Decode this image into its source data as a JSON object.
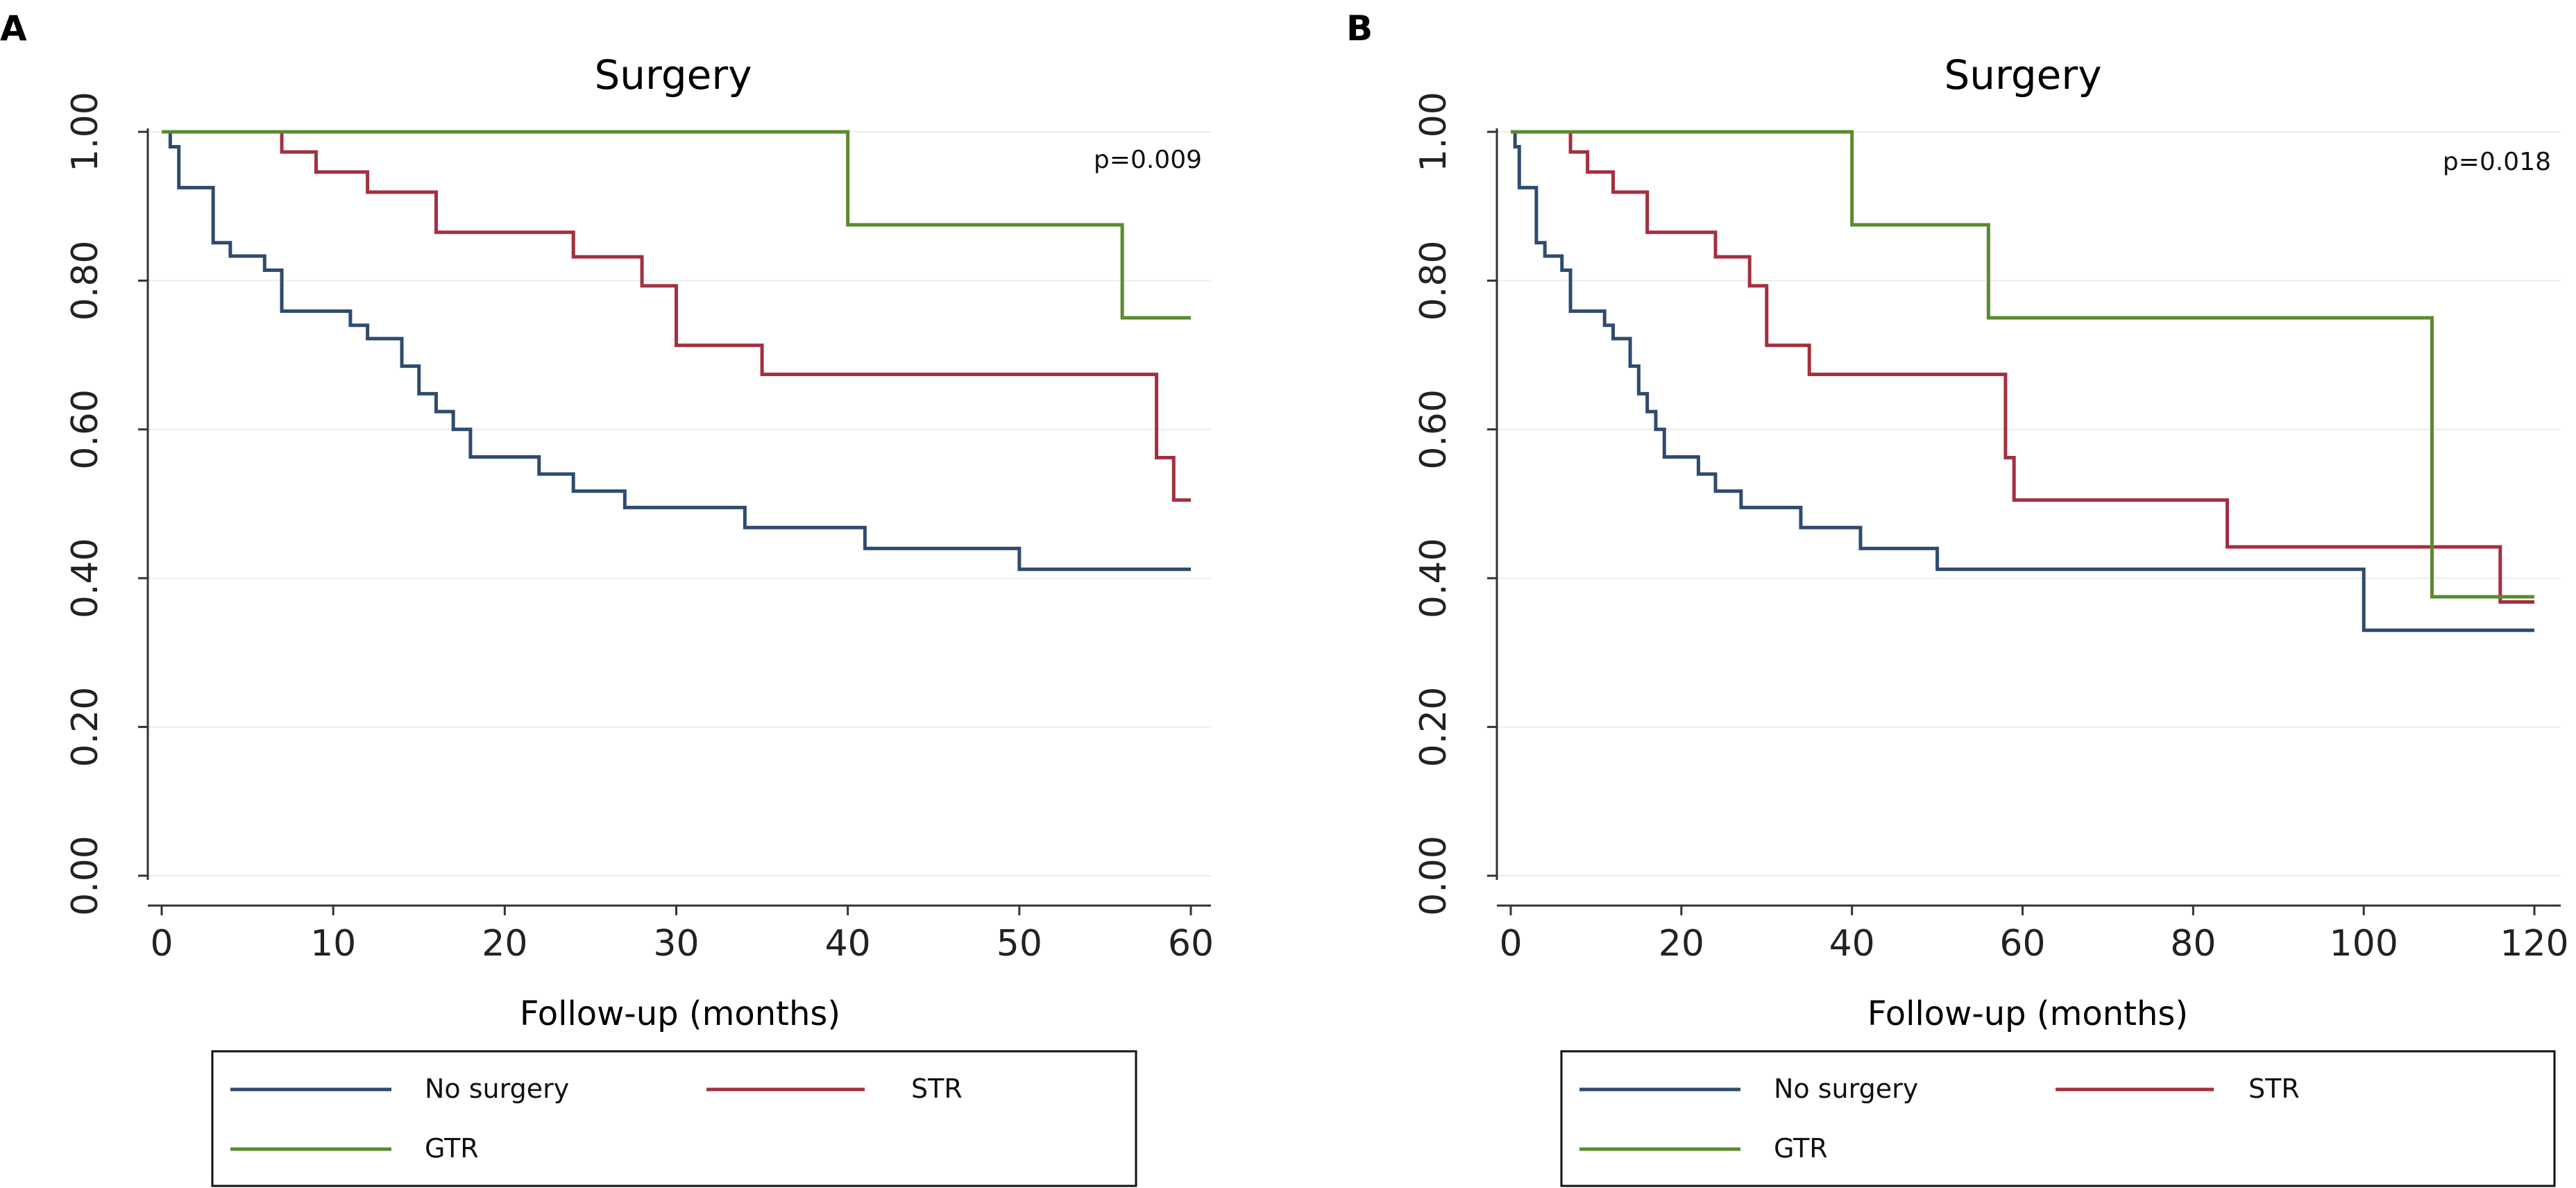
{
  "chart_data": [
    {
      "panel": "A",
      "type": "line",
      "title": "Surgery",
      "xlabel": "Follow-up (months)",
      "ylabel": "",
      "xlim": [
        0,
        60
      ],
      "ylim": [
        0,
        1
      ],
      "xticks": [
        0,
        10,
        20,
        30,
        40,
        50,
        60
      ],
      "yticks": [
        0,
        0.2,
        0.4,
        0.6,
        0.8,
        1.0
      ],
      "ytick_labels": [
        "0.00",
        "0.20",
        "0.40",
        "0.60",
        "0.80",
        "1.00"
      ],
      "annotation": "p=0.009",
      "grid": true,
      "series": [
        {
          "name": "No surgery",
          "color": "#2f4b6e",
          "x": [
            0,
            0.5,
            1,
            3,
            4,
            6,
            7,
            11,
            12,
            14,
            15,
            16,
            17,
            18,
            22,
            24,
            27,
            34,
            41,
            50,
            60
          ],
          "y": [
            1.0,
            0.98,
            0.925,
            0.851,
            0.833,
            0.814,
            0.759,
            0.74,
            0.722,
            0.685,
            0.648,
            0.624,
            0.6,
            0.563,
            0.54,
            0.517,
            0.495,
            0.468,
            0.44,
            0.412,
            0.412
          ]
        },
        {
          "name": "STR",
          "color": "#a3303f",
          "x": [
            0,
            7,
            9,
            12,
            16,
            24,
            28,
            30,
            35,
            58,
            59,
            60
          ],
          "y": [
            1.0,
            0.973,
            0.946,
            0.919,
            0.865,
            0.832,
            0.793,
            0.713,
            0.674,
            0.562,
            0.505,
            0.505
          ]
        },
        {
          "name": "GTR",
          "color": "#5a8a2e",
          "x": [
            0,
            40,
            56,
            60
          ],
          "y": [
            1.0,
            0.875,
            0.75,
            0.75
          ]
        }
      ],
      "legend": [
        "No surgery",
        "STR",
        "GTR"
      ]
    },
    {
      "panel": "B",
      "type": "line",
      "title": "Surgery",
      "xlabel": "Follow-up (months)",
      "ylabel": "",
      "xlim": [
        0,
        120
      ],
      "ylim": [
        0,
        1
      ],
      "xticks": [
        0,
        20,
        40,
        60,
        80,
        100,
        120
      ],
      "yticks": [
        0,
        0.2,
        0.4,
        0.6,
        0.8,
        1.0
      ],
      "ytick_labels": [
        "0.00",
        "0.20",
        "0.40",
        "0.60",
        "0.80",
        "1.00"
      ],
      "annotation": "p=0.018",
      "grid": true,
      "series": [
        {
          "name": "No surgery",
          "color": "#2f4b6e",
          "x": [
            0,
            0.5,
            1,
            3,
            4,
            6,
            7,
            11,
            12,
            14,
            15,
            16,
            17,
            18,
            22,
            24,
            27,
            34,
            41,
            50,
            100,
            120
          ],
          "y": [
            1.0,
            0.98,
            0.925,
            0.851,
            0.833,
            0.814,
            0.759,
            0.74,
            0.722,
            0.685,
            0.648,
            0.624,
            0.6,
            0.563,
            0.54,
            0.517,
            0.495,
            0.468,
            0.44,
            0.412,
            0.33,
            0.33
          ]
        },
        {
          "name": "STR",
          "color": "#a3303f",
          "x": [
            0,
            7,
            9,
            12,
            16,
            24,
            28,
            30,
            35,
            58,
            59,
            84,
            116,
            120
          ],
          "y": [
            1.0,
            0.973,
            0.946,
            0.919,
            0.865,
            0.832,
            0.793,
            0.713,
            0.674,
            0.562,
            0.505,
            0.442,
            0.368,
            0.368
          ]
        },
        {
          "name": "GTR",
          "color": "#5a8a2e",
          "x": [
            0,
            40,
            56,
            108,
            120
          ],
          "y": [
            1.0,
            0.875,
            0.75,
            0.375,
            0.375
          ]
        }
      ],
      "legend": [
        "No surgery",
        "STR",
        "GTR"
      ]
    }
  ]
}
